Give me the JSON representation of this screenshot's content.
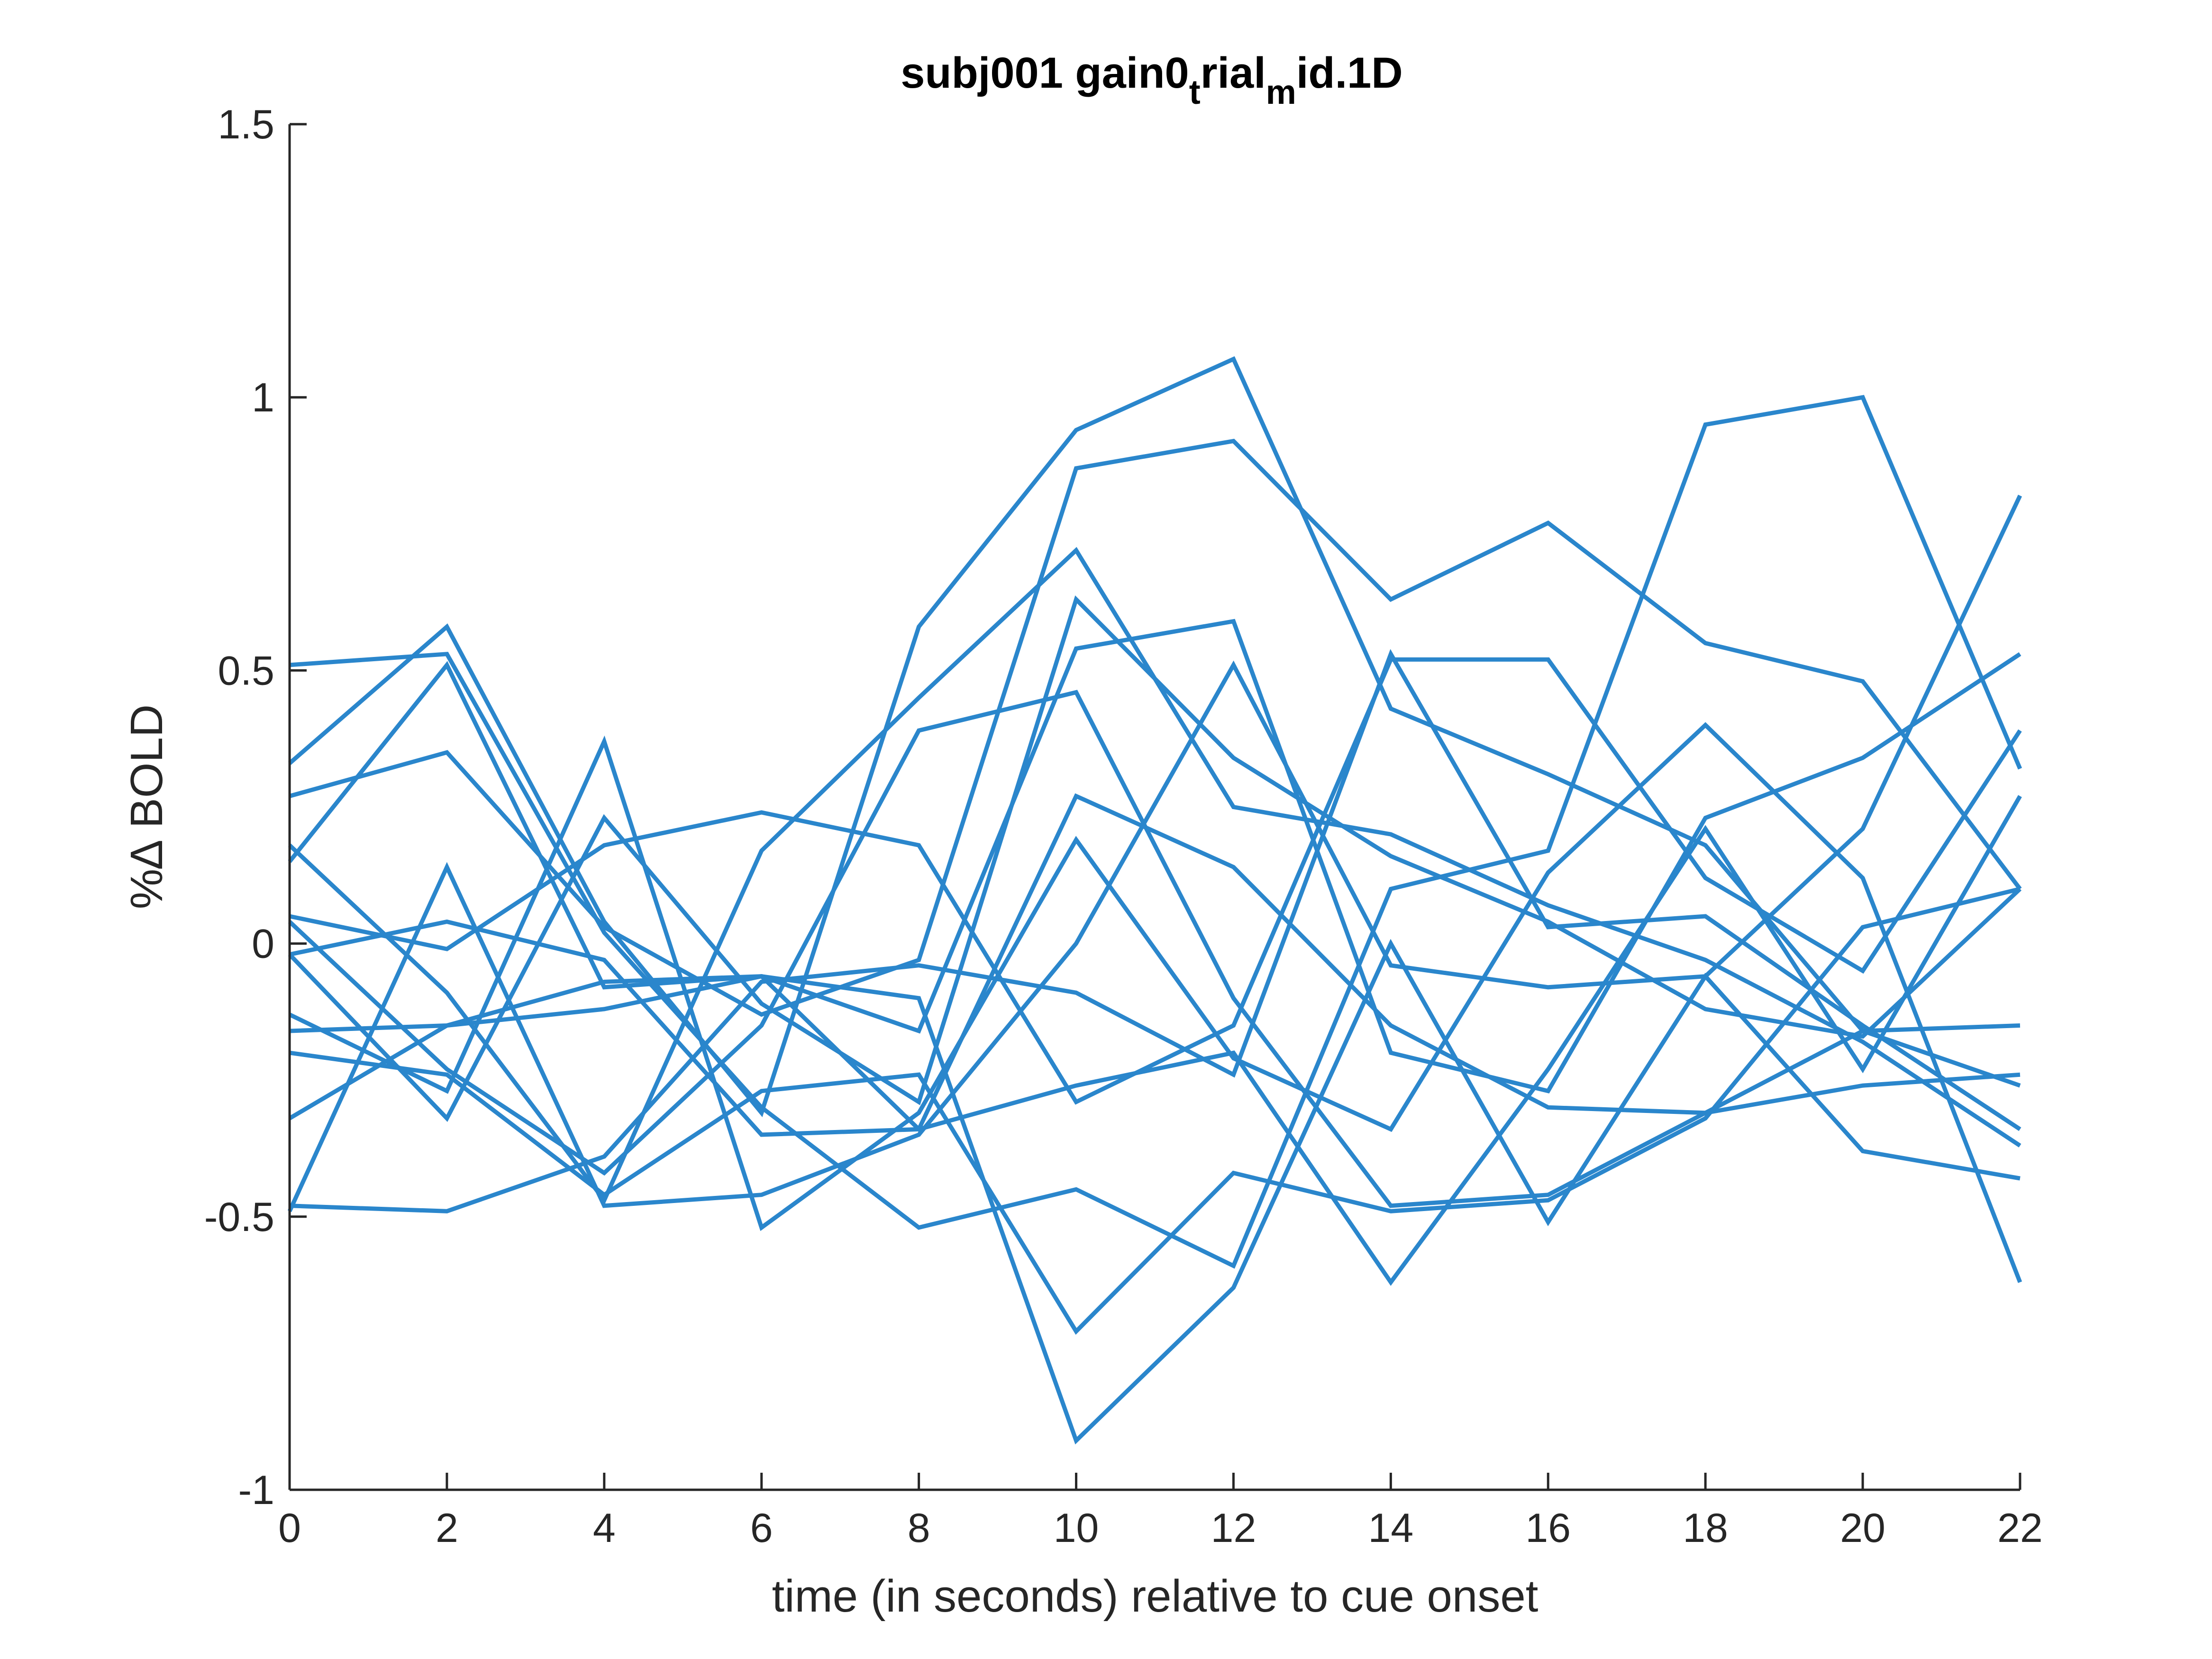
{
  "colors": {
    "series": "#2a86cc",
    "axis": "#262626"
  },
  "chart_data": {
    "type": "line",
    "title": {
      "main": "subj001 gain0",
      "sub1": "t",
      "mid": "rial",
      "sub2": "m",
      "end": "id.1D"
    },
    "xlabel": "time (in seconds) relative to cue onset",
    "ylabel": "%∆ BOLD",
    "xlim": [
      0,
      22
    ],
    "ylim": [
      -1,
      1.5
    ],
    "xticks": [
      "0",
      "2",
      "4",
      "6",
      "8",
      "10",
      "12",
      "14",
      "16",
      "18",
      "20",
      "22"
    ],
    "yticks": [
      "-1",
      "-0.5",
      "0",
      "0.5",
      "1",
      "1.5"
    ],
    "grid": false,
    "x": [
      0,
      2,
      4,
      6,
      8,
      10,
      12,
      14,
      16,
      18,
      20,
      22
    ],
    "series": [
      {
        "values": [
          0.51,
          0.53,
          0.02,
          -0.3,
          -0.52,
          -0.45,
          -0.59,
          0.1,
          0.17,
          0.95,
          1.0,
          0.32
        ]
      },
      {
        "values": [
          0.33,
          0.58,
          0.04,
          -0.31,
          0.58,
          0.94,
          1.07,
          0.43,
          0.31,
          0.18,
          -0.16,
          -0.26
        ]
      },
      {
        "values": [
          0.27,
          0.35,
          0.03,
          -0.13,
          -0.03,
          0.87,
          0.92,
          0.63,
          0.77,
          0.55,
          0.48,
          0.1
        ]
      },
      {
        "values": [
          0.15,
          0.51,
          -0.08,
          -0.06,
          -0.16,
          0.54,
          0.59,
          -0.2,
          -0.27,
          0.23,
          0.34,
          0.53
        ]
      },
      {
        "values": [
          0.18,
          -0.09,
          -0.47,
          0.17,
          0.45,
          0.72,
          0.25,
          0.2,
          0.07,
          -0.03,
          -0.18,
          -0.37
        ]
      },
      {
        "values": [
          0.05,
          -0.01,
          0.18,
          0.24,
          0.18,
          -0.29,
          -0.15,
          0.52,
          0.52,
          0.12,
          -0.05,
          0.39
        ]
      },
      {
        "values": [
          0.04,
          -0.23,
          -0.42,
          -0.15,
          0.39,
          0.46,
          -0.1,
          -0.48,
          -0.46,
          -0.31,
          -0.26,
          -0.24
        ]
      },
      {
        "values": [
          -0.02,
          -0.32,
          0.23,
          -0.11,
          -0.29,
          0.63,
          0.34,
          0.16,
          0.04,
          -0.12,
          -0.17,
          0.1
        ]
      },
      {
        "values": [
          -0.13,
          -0.27,
          0.37,
          -0.52,
          -0.31,
          0.19,
          -0.21,
          -0.34,
          0.13,
          0.4,
          0.12,
          -0.62
        ]
      },
      {
        "values": [
          -0.16,
          -0.15,
          -0.07,
          -0.06,
          -0.34,
          0.27,
          0.14,
          -0.15,
          -0.3,
          -0.31,
          -0.16,
          -0.15
        ]
      },
      {
        "values": [
          -0.2,
          -0.24,
          -0.46,
          -0.27,
          -0.24,
          -0.71,
          -0.42,
          -0.49,
          -0.47,
          -0.32,
          0.03,
          0.1
        ]
      },
      {
        "values": [
          -0.32,
          -0.15,
          -0.12,
          -0.06,
          -0.1,
          -0.91,
          -0.63,
          0.0,
          -0.51,
          -0.06,
          -0.38,
          -0.43
        ]
      },
      {
        "values": [
          -0.48,
          -0.49,
          -0.39,
          -0.07,
          -0.04,
          -0.09,
          -0.24,
          0.53,
          0.03,
          0.05,
          -0.15,
          -0.34
        ]
      },
      {
        "values": [
          -0.49,
          0.14,
          -0.48,
          -0.46,
          -0.35,
          0.0,
          0.51,
          -0.04,
          -0.08,
          -0.06,
          0.21,
          0.82
        ]
      },
      {
        "values": [
          -0.02,
          0.04,
          -0.03,
          -0.35,
          -0.34,
          -0.26,
          -0.2,
          -0.62,
          -0.23,
          0.21,
          -0.23,
          0.27
        ]
      }
    ]
  }
}
